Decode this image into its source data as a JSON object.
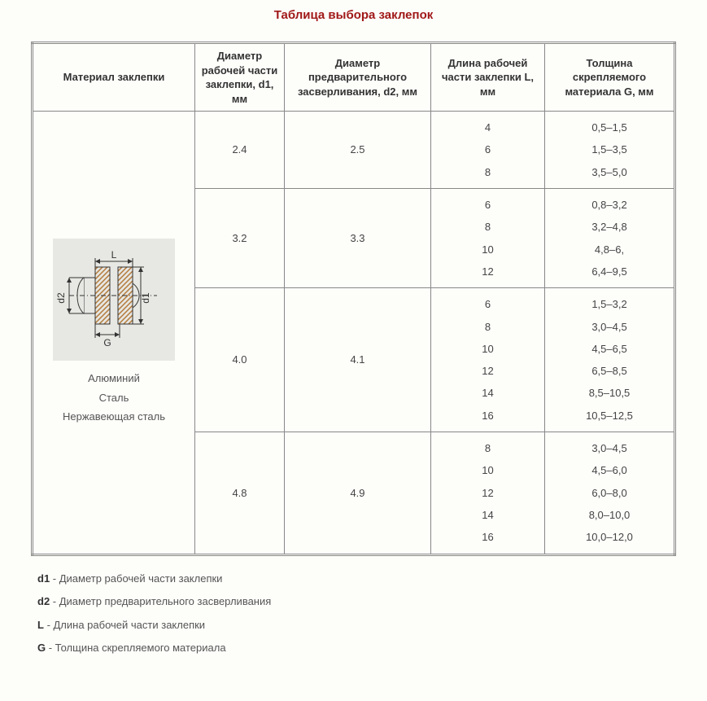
{
  "title": "Таблица выбора заклепок",
  "columns": {
    "material": "Материал заклепки",
    "d1": "Диаметр рабочей части заклепки, d1, мм",
    "d2": "Диаметр предварительного засверливания, d2, мм",
    "L": "Длина рабочей части заклепки L, мм",
    "G": "Толщина скрепляемого материала G, мм"
  },
  "materials": {
    "line1": "Алюминий",
    "line2": "Сталь",
    "line3": "Нержавеющая сталь"
  },
  "diagram_labels": {
    "L": "L",
    "G": "G",
    "d1": "d1",
    "d2": "d2"
  },
  "rows": [
    {
      "d1": "2.4",
      "d2": "2.5",
      "L": [
        "4",
        "6",
        "8"
      ],
      "G": [
        "0,5–1,5",
        "1,5–3,5",
        "3,5–5,0"
      ]
    },
    {
      "d1": "3.2",
      "d2": "3.3",
      "L": [
        "6",
        "8",
        "10",
        "12"
      ],
      "G": [
        "0,8–3,2",
        "3,2–4,8",
        "4,8–6,",
        "6,4–9,5"
      ]
    },
    {
      "d1": "4.0",
      "d2": "4.1",
      "L": [
        "6",
        "8",
        "10",
        "12",
        "14",
        "16"
      ],
      "G": [
        "1,5–3,2",
        "3,0–4,5",
        "4,5–6,5",
        "6,5–8,5",
        "8,5–10,5",
        "10,5–12,5"
      ]
    },
    {
      "d1": "4.8",
      "d2": "4.9",
      "L": [
        "8",
        "10",
        "12",
        "14",
        "16"
      ],
      "G": [
        "3,0–4,5",
        "4,5–6,0",
        "6,0–8,0",
        "8,0–10,0",
        "10,0–12,0"
      ]
    }
  ],
  "legend": {
    "d1": {
      "key": "d1",
      "text": " - Диаметр рабочей части заклепки"
    },
    "d2": {
      "key": "d2",
      "text": " - Диаметр предварительного засверливания"
    },
    "L": {
      "key": "L",
      "text": " - Длина рабочей части заклепки"
    },
    "G": {
      "key": "G",
      "text": " - Толщина скрепляемого материала"
    }
  },
  "style": {
    "title_color": "#a01818",
    "border_color": "#888888",
    "text_color": "#444444",
    "background": "#fdfdfa",
    "diagram_bg": "#e7e7e3",
    "hatch_color": "#b37a3a",
    "line_color": "#333333"
  }
}
